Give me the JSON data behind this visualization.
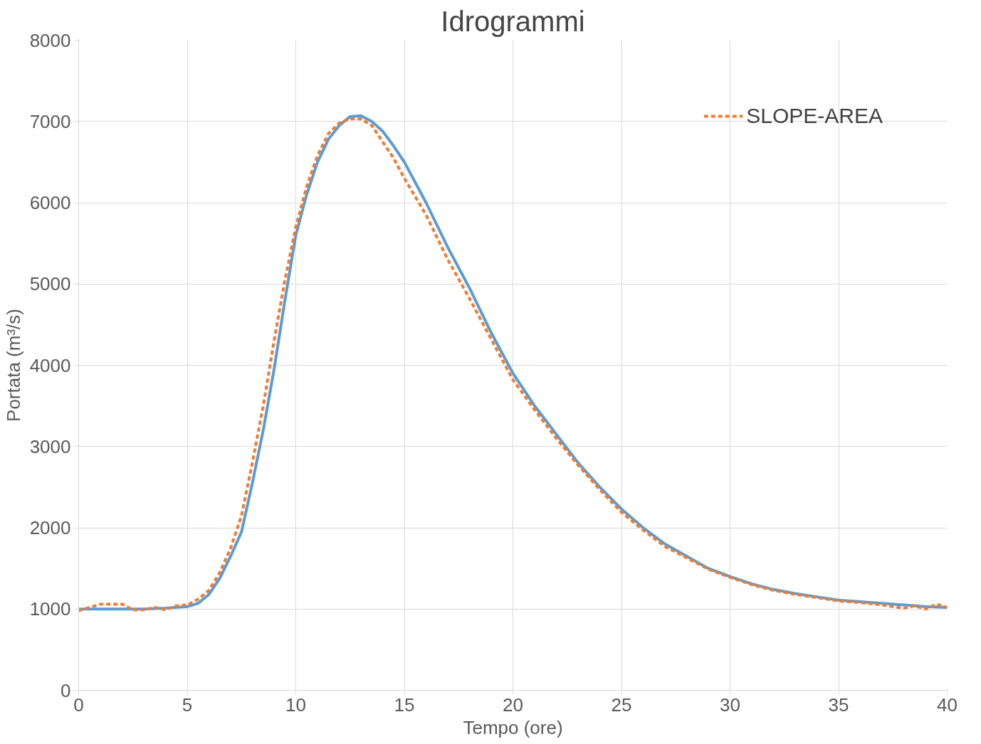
{
  "chart_data": {
    "type": "line",
    "title": "Idrogrammi",
    "xlabel": "Tempo (ore)",
    "ylabel": "Portata (m³/s)",
    "xlim": [
      0,
      40
    ],
    "xticks": [
      0,
      5,
      10,
      15,
      20,
      25,
      30,
      35,
      40
    ],
    "ylim": [
      0,
      8000
    ],
    "yticks": [
      0,
      1000,
      2000,
      3000,
      4000,
      5000,
      6000,
      7000,
      8000
    ],
    "grid": true,
    "legend": "top right",
    "marker": "none",
    "series": [
      {
        "color": "#5b9bd5",
        "line_style": "solid",
        "x": [
          0,
          1,
          2,
          3,
          4,
          5,
          5.5,
          6,
          6.5,
          7,
          7.5,
          8,
          8.5,
          9,
          9.5,
          10,
          10.5,
          11,
          11.5,
          12,
          12.5,
          13,
          13.5,
          14,
          14.5,
          15,
          16,
          17,
          18,
          19,
          20,
          21,
          22,
          23,
          24,
          25,
          26,
          27,
          28,
          29,
          30,
          31,
          32,
          33,
          34,
          35,
          36,
          37,
          38,
          39,
          40
        ],
        "values": [
          1000,
          1000,
          1000,
          1000,
          1010,
          1030,
          1070,
          1180,
          1380,
          1650,
          1950,
          2550,
          3200,
          3950,
          4800,
          5600,
          6100,
          6500,
          6780,
          6950,
          7060,
          7070,
          7000,
          6880,
          6700,
          6500,
          6000,
          5450,
          4950,
          4400,
          3900,
          3500,
          3150,
          2800,
          2500,
          2230,
          2000,
          1800,
          1650,
          1500,
          1400,
          1310,
          1240,
          1190,
          1150,
          1110,
          1090,
          1070,
          1050,
          1030,
          1020
        ]
      },
      {
        "name": "SLOPE-AREA",
        "color": "#ed7d31",
        "line_style": "dashed",
        "x": [
          0,
          0.5,
          1,
          2,
          2.5,
          3,
          3.5,
          4,
          4.5,
          5,
          5.5,
          6,
          6.5,
          7,
          7.5,
          8,
          8.5,
          9,
          9.5,
          10,
          10.5,
          11,
          11.5,
          12,
          12.5,
          13,
          13.5,
          14,
          14.5,
          15,
          16,
          17,
          18,
          19,
          20,
          21,
          22,
          23,
          24,
          25,
          26,
          27,
          28,
          29,
          30,
          31,
          32,
          33,
          34,
          35,
          36,
          37,
          38,
          38.5,
          39,
          39.5,
          40
        ],
        "values": [
          980,
          1020,
          1060,
          1060,
          990,
          990,
          1020,
          990,
          1040,
          1050,
          1120,
          1230,
          1450,
          1750,
          2150,
          2800,
          3500,
          4300,
          5050,
          5700,
          6200,
          6580,
          6850,
          6980,
          7030,
          7030,
          6950,
          6750,
          6550,
          6300,
          5850,
          5300,
          4820,
          4320,
          3820,
          3450,
          3100,
          2770,
          2470,
          2190,
          1970,
          1770,
          1630,
          1490,
          1390,
          1300,
          1230,
          1180,
          1140,
          1100,
          1080,
          1050,
          1010,
          1040,
          1000,
          1060,
          1020
        ]
      }
    ]
  }
}
